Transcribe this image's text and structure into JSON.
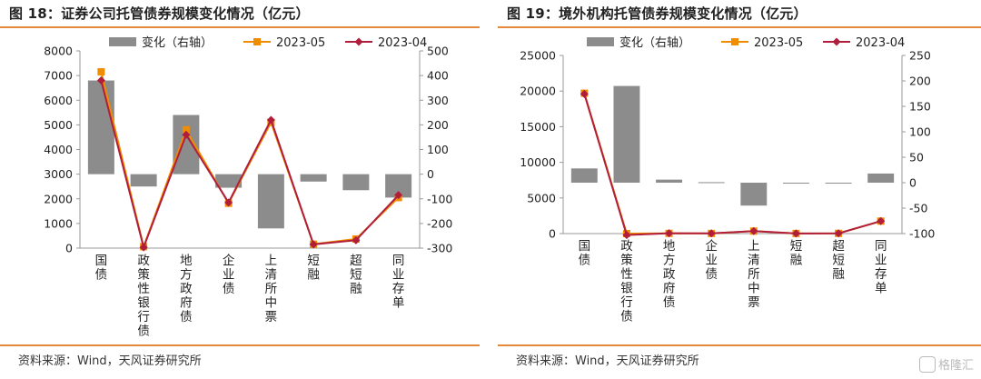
{
  "colors": {
    "accent_rule": "#e58a3a",
    "bar": "#8c8c8c",
    "series_may": "#f08c00",
    "series_apr": "#b01e3c"
  },
  "left": {
    "title": "图 18：证券公司托管债券规模变化情况（亿元）",
    "source": "资料来源：Wind，天风证券研究所",
    "chart_data": {
      "type": "bar+line",
      "categories": [
        "国债",
        "政策性银行债",
        "地方政府债",
        "企业债",
        "上清所中票",
        "短融",
        "超短融",
        "同业存单"
      ],
      "bar_series": {
        "name": "变化（右轴）",
        "axis": "right",
        "values": [
          380,
          -50,
          240,
          -55,
          -220,
          -30,
          -65,
          -95
        ]
      },
      "series": [
        {
          "name": "2023-05",
          "axis": "left",
          "values": [
            7150,
            60,
            4800,
            1820,
            5100,
            160,
            370,
            2050
          ]
        },
        {
          "name": "2023-04",
          "axis": "left",
          "values": [
            6800,
            30,
            4600,
            1850,
            5200,
            150,
            320,
            2150
          ]
        }
      ],
      "y_left": {
        "min": 0,
        "max": 8000,
        "ticks": [
          0,
          1000,
          2000,
          3000,
          4000,
          5000,
          6000,
          7000,
          8000
        ]
      },
      "y_right": {
        "min": -300,
        "max": 500,
        "ticks": [
          -300,
          -200,
          -100,
          0,
          100,
          200,
          300,
          400,
          500
        ]
      },
      "legend_position": "top"
    }
  },
  "right": {
    "title": "图 19：境外机构托管债券规模变化情况（亿元）",
    "source": "资料来源：Wind，天风证券研究所",
    "chart_data": {
      "type": "bar+line",
      "categories": [
        "国债",
        "政策性银行债",
        "地方政府债",
        "企业债",
        "上清所中票",
        "短融",
        "超短融",
        "同业存单"
      ],
      "bar_series": {
        "name": "变化（右轴）",
        "axis": "right",
        "values": [
          28,
          190,
          6,
          1,
          -45,
          0,
          0,
          18
        ]
      },
      "series": [
        {
          "name": "2023-05",
          "axis": "left",
          "values": [
            19700,
            0,
            30,
            20,
            350,
            20,
            30,
            1750
          ]
        },
        {
          "name": "2023-04",
          "axis": "left",
          "values": [
            19600,
            -200,
            40,
            25,
            350,
            20,
            30,
            1750
          ]
        }
      ],
      "y_left": {
        "min": 0,
        "max": 25000,
        "ticks": [
          0,
          5000,
          10000,
          15000,
          20000,
          25000
        ]
      },
      "y_right": {
        "min": -100,
        "max": 250,
        "ticks": [
          -100,
          -50,
          0,
          50,
          100,
          150,
          200,
          250
        ]
      },
      "legend_position": "top"
    }
  },
  "watermark": "格隆汇"
}
